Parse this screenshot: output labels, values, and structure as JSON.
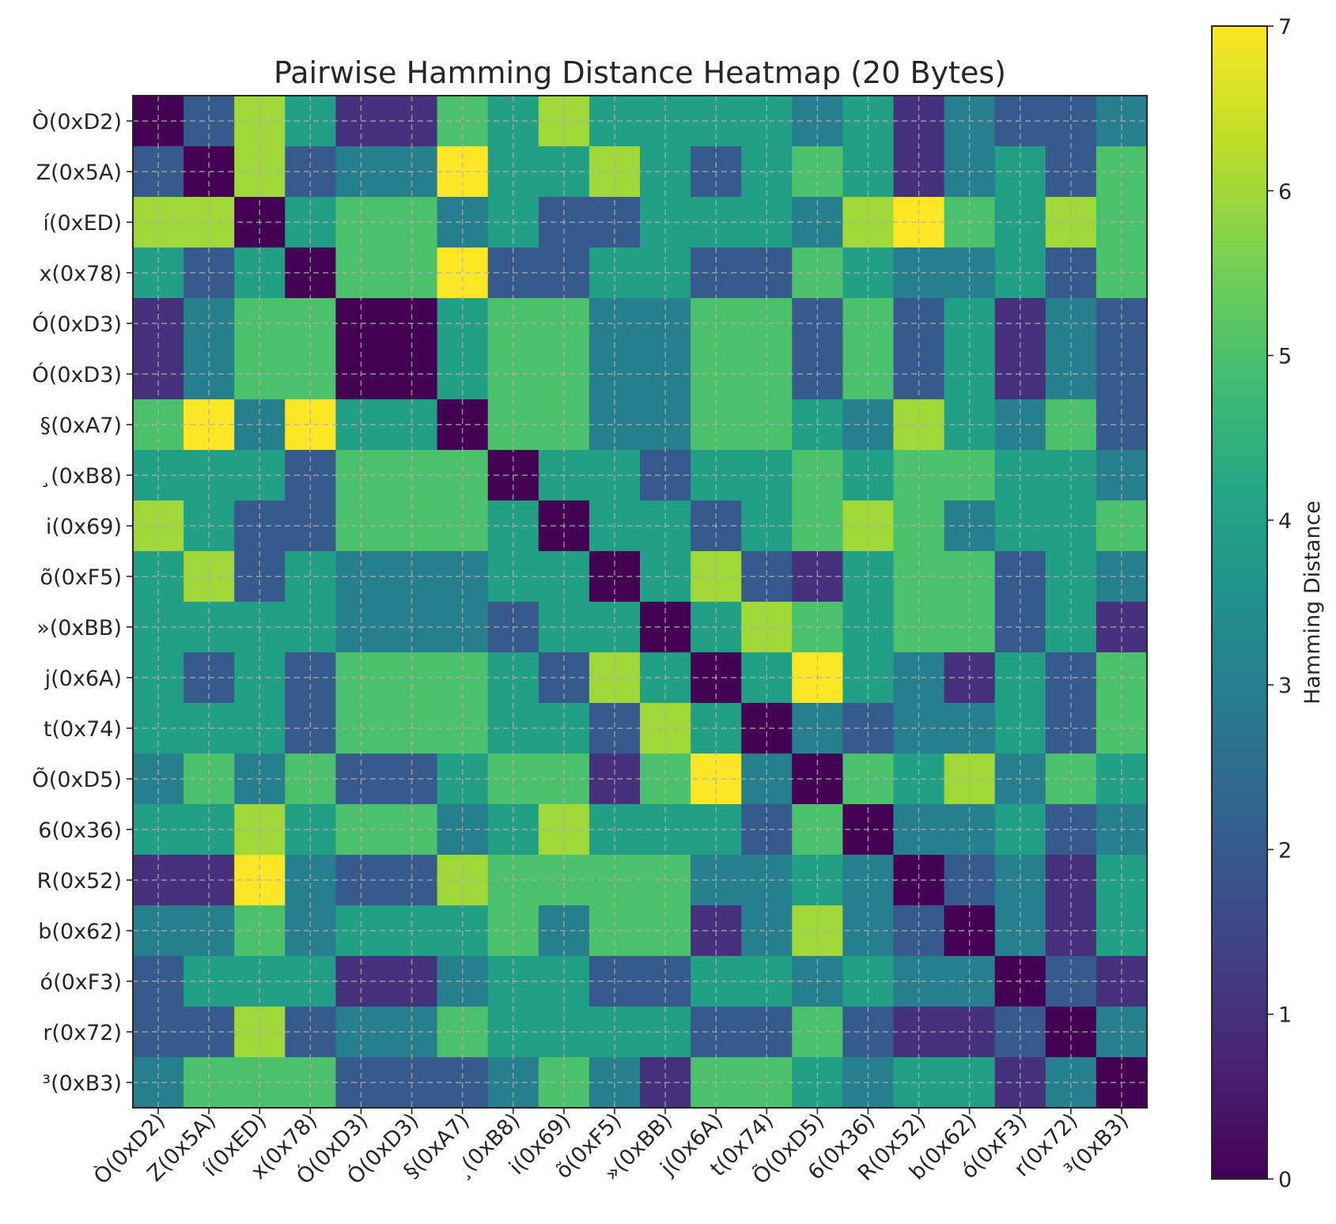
{
  "chart_data": {
    "type": "heatmap",
    "title": "Pairwise Hamming Distance Heatmap (20 Bytes)",
    "colormap": "viridis",
    "colorbar_label": "Hamming Distance",
    "vmin": 0,
    "vmax": 7,
    "colorbar_ticks": [
      "0",
      "1",
      "2",
      "3",
      "4",
      "5",
      "6",
      "7"
    ],
    "grid": true,
    "labels": [
      "Ò(0xD2)",
      "Z(0x5A)",
      "í(0xED)",
      "x(0x78)",
      "Ó(0xD3)",
      "Ó(0xD3)",
      "§(0xA7)",
      "¸(0xB8)",
      "i(0x69)",
      "õ(0xF5)",
      "»(0xBB)",
      "j(0x6A)",
      "t(0x74)",
      "Õ(0xD5)",
      "6(0x36)",
      "R(0x52)",
      "b(0x62)",
      "ó(0xF3)",
      "r(0x72)",
      "³(0xB3)"
    ],
    "matrix": [
      [
        0,
        2,
        6,
        4,
        1,
        1,
        5,
        4,
        6,
        4,
        4,
        4,
        4,
        3,
        4,
        1,
        3,
        2,
        2,
        3
      ],
      [
        2,
        0,
        6,
        2,
        3,
        3,
        7,
        4,
        4,
        6,
        4,
        2,
        4,
        5,
        4,
        1,
        3,
        4,
        2,
        5
      ],
      [
        6,
        6,
        0,
        4,
        5,
        5,
        3,
        4,
        2,
        2,
        4,
        4,
        4,
        3,
        6,
        7,
        5,
        4,
        6,
        5
      ],
      [
        4,
        2,
        4,
        0,
        5,
        5,
        7,
        2,
        2,
        4,
        4,
        2,
        2,
        5,
        4,
        3,
        3,
        4,
        2,
        5
      ],
      [
        1,
        3,
        5,
        5,
        0,
        0,
        4,
        5,
        5,
        3,
        3,
        5,
        5,
        2,
        5,
        2,
        4,
        1,
        3,
        2
      ],
      [
        1,
        3,
        5,
        5,
        0,
        0,
        4,
        5,
        5,
        3,
        3,
        5,
        5,
        2,
        5,
        2,
        4,
        1,
        3,
        2
      ],
      [
        5,
        7,
        3,
        7,
        4,
        4,
        0,
        5,
        5,
        3,
        3,
        5,
        5,
        4,
        3,
        6,
        4,
        3,
        5,
        2
      ],
      [
        4,
        4,
        4,
        2,
        5,
        5,
        5,
        0,
        4,
        4,
        2,
        4,
        4,
        5,
        4,
        5,
        5,
        4,
        4,
        3
      ],
      [
        6,
        4,
        2,
        2,
        5,
        5,
        5,
        4,
        0,
        4,
        4,
        2,
        4,
        5,
        6,
        5,
        3,
        4,
        4,
        5
      ],
      [
        4,
        6,
        2,
        4,
        3,
        3,
        3,
        4,
        4,
        0,
        4,
        6,
        2,
        1,
        4,
        5,
        5,
        2,
        4,
        3
      ],
      [
        4,
        4,
        4,
        4,
        3,
        3,
        3,
        2,
        4,
        4,
        0,
        4,
        6,
        5,
        4,
        5,
        5,
        2,
        4,
        1
      ],
      [
        4,
        2,
        4,
        2,
        5,
        5,
        5,
        4,
        2,
        6,
        4,
        0,
        4,
        7,
        4,
        3,
        1,
        4,
        2,
        5
      ],
      [
        4,
        4,
        4,
        2,
        5,
        5,
        5,
        4,
        4,
        2,
        6,
        4,
        0,
        3,
        2,
        3,
        3,
        4,
        2,
        5
      ],
      [
        3,
        5,
        3,
        5,
        2,
        2,
        4,
        5,
        5,
        1,
        5,
        7,
        3,
        0,
        5,
        4,
        6,
        3,
        5,
        4
      ],
      [
        4,
        4,
        6,
        4,
        5,
        5,
        3,
        4,
        6,
        4,
        4,
        4,
        2,
        5,
        0,
        3,
        3,
        4,
        2,
        3
      ],
      [
        1,
        1,
        7,
        3,
        2,
        2,
        6,
        5,
        5,
        5,
        5,
        3,
        3,
        4,
        3,
        0,
        2,
        3,
        1,
        4
      ],
      [
        3,
        3,
        5,
        3,
        4,
        4,
        4,
        5,
        3,
        5,
        5,
        1,
        3,
        6,
        3,
        2,
        0,
        3,
        1,
        4
      ],
      [
        2,
        4,
        4,
        4,
        1,
        1,
        3,
        4,
        4,
        2,
        2,
        4,
        4,
        3,
        4,
        3,
        3,
        0,
        2,
        1
      ],
      [
        2,
        2,
        6,
        2,
        3,
        3,
        5,
        4,
        4,
        4,
        4,
        2,
        2,
        5,
        2,
        1,
        1,
        2,
        0,
        3
      ],
      [
        3,
        5,
        5,
        5,
        2,
        2,
        2,
        3,
        5,
        3,
        1,
        5,
        5,
        4,
        3,
        4,
        4,
        1,
        3,
        0
      ]
    ]
  }
}
